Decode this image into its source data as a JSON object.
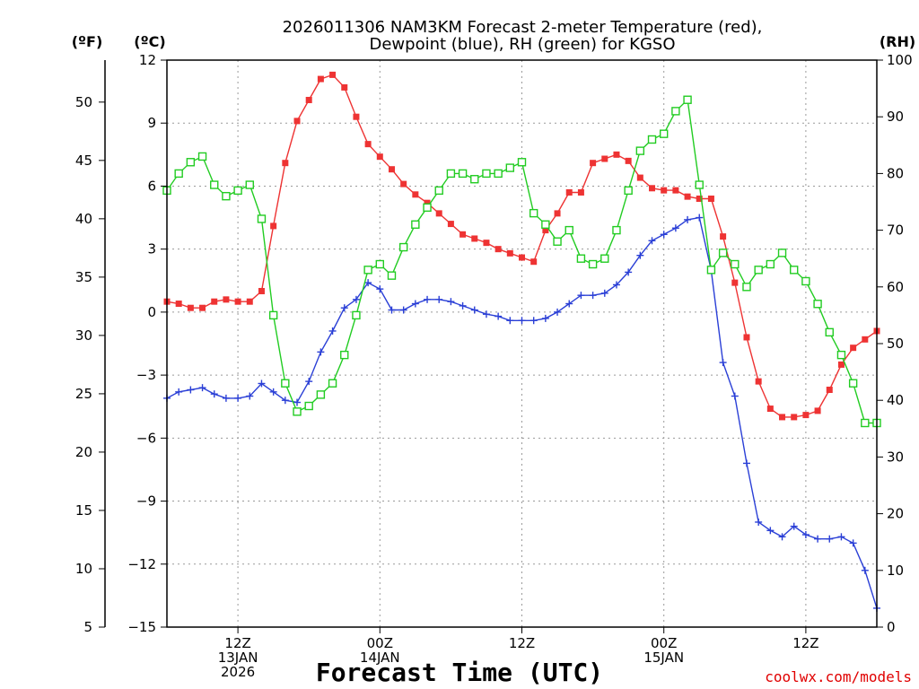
{
  "chart_data": {
    "type": "line",
    "title_line1": "2026011306 NAM3KM Forecast 2-meter Temperature (red),",
    "title_line2": "Dewpoint (blue), RH (green) for KGSO",
    "xlabel": "Forecast Time (UTC)",
    "credit": "coolwx.com/models",
    "left_unit_f": "(ºF)",
    "left_unit_c": "(ºC)",
    "right_unit": "(RH)",
    "ylim_c": [
      -15,
      12
    ],
    "yticks_c": [
      12,
      9,
      6,
      3,
      0,
      -3,
      -6,
      -9,
      -12,
      -15
    ],
    "yticks_f": [
      50,
      45,
      40,
      35,
      30,
      25,
      20,
      15,
      10,
      5
    ],
    "ylim_rh": [
      0,
      100
    ],
    "yticks_rh": [
      100,
      90,
      80,
      70,
      60,
      50,
      40,
      30,
      20,
      10,
      0
    ],
    "x_range_hours": [
      7,
      67
    ],
    "x_ticks": [
      {
        "hour": 13,
        "lines": [
          "12Z",
          "13JAN",
          "2026"
        ]
      },
      {
        "hour": 25,
        "lines": [
          "00Z",
          "14JAN"
        ]
      },
      {
        "hour": 37,
        "lines": [
          "12Z"
        ]
      },
      {
        "hour": 49,
        "lines": [
          "00Z",
          "15JAN"
        ]
      },
      {
        "hour": 61,
        "lines": [
          "12Z"
        ]
      }
    ],
    "x": [
      7,
      8,
      9,
      10,
      11,
      12,
      13,
      14,
      15,
      16,
      17,
      18,
      19,
      20,
      21,
      22,
      23,
      24,
      25,
      26,
      27,
      28,
      29,
      30,
      31,
      32,
      33,
      34,
      35,
      36,
      37,
      38,
      39,
      40,
      41,
      42,
      43,
      44,
      45,
      46,
      47,
      48,
      49,
      50,
      51,
      52,
      53,
      54,
      55,
      56,
      57,
      58,
      59,
      60,
      61,
      62,
      63,
      64,
      65,
      66,
      67
    ],
    "series": [
      {
        "name": "2-meter Temperature",
        "color": "#ee3333",
        "units": "C",
        "values": [
          0.5,
          0.4,
          0.2,
          0.2,
          0.5,
          0.6,
          0.5,
          0.5,
          1.0,
          4.1,
          7.1,
          9.1,
          10.1,
          11.1,
          11.3,
          10.7,
          9.3,
          8.0,
          7.4,
          6.8,
          6.1,
          5.6,
          5.2,
          4.7,
          4.2,
          3.7,
          3.5,
          3.3,
          3.0,
          2.8,
          2.6,
          2.4,
          3.9,
          4.7,
          5.7,
          5.7,
          7.1,
          7.3,
          7.5,
          7.2,
          6.4,
          5.9,
          5.8,
          5.8,
          5.5,
          5.4,
          5.4,
          3.6,
          1.4,
          -1.2,
          -3.3,
          -4.6,
          -5.0,
          -5.0,
          -4.9,
          -4.7,
          -3.7,
          -2.5,
          -1.7,
          -1.3,
          -0.9
        ]
      },
      {
        "name": "Dewpoint",
        "color": "#2a3fd6",
        "units": "C",
        "values": [
          -4.1,
          -3.8,
          -3.7,
          -3.6,
          -3.9,
          -4.1,
          -4.1,
          -4.0,
          -3.4,
          -3.8,
          -4.2,
          -4.3,
          -3.3,
          -1.9,
          -0.9,
          0.2,
          0.6,
          1.4,
          1.1,
          0.1,
          0.1,
          0.4,
          0.6,
          0.6,
          0.5,
          0.3,
          0.1,
          -0.1,
          -0.2,
          -0.4,
          -0.4,
          -0.4,
          -0.3,
          0.0,
          0.4,
          0.8,
          0.8,
          0.9,
          1.3,
          1.9,
          2.7,
          3.4,
          3.7,
          4.0,
          4.4,
          4.5,
          2.0,
          -2.4,
          -4.0,
          -7.2,
          -10.0,
          -10.4,
          -10.7,
          -10.2,
          -10.6,
          -10.8,
          -10.8,
          -10.7,
          -11.0,
          -12.3,
          -14.1
        ]
      },
      {
        "name": "RH",
        "color": "#22cc22",
        "units": "%",
        "values": [
          77,
          80,
          82,
          83,
          78,
          76,
          77,
          78,
          72,
          55,
          43,
          38,
          39,
          41,
          43,
          48,
          55,
          63,
          64,
          62,
          67,
          71,
          74,
          77,
          80,
          80,
          79,
          80,
          80,
          81,
          82,
          73,
          71,
          68,
          70,
          65,
          64,
          65,
          70,
          77,
          84,
          86,
          87,
          91,
          93,
          78,
          63,
          66,
          64,
          60,
          63,
          64,
          66,
          63,
          61,
          57,
          52,
          48,
          43,
          36,
          36
        ]
      }
    ]
  }
}
